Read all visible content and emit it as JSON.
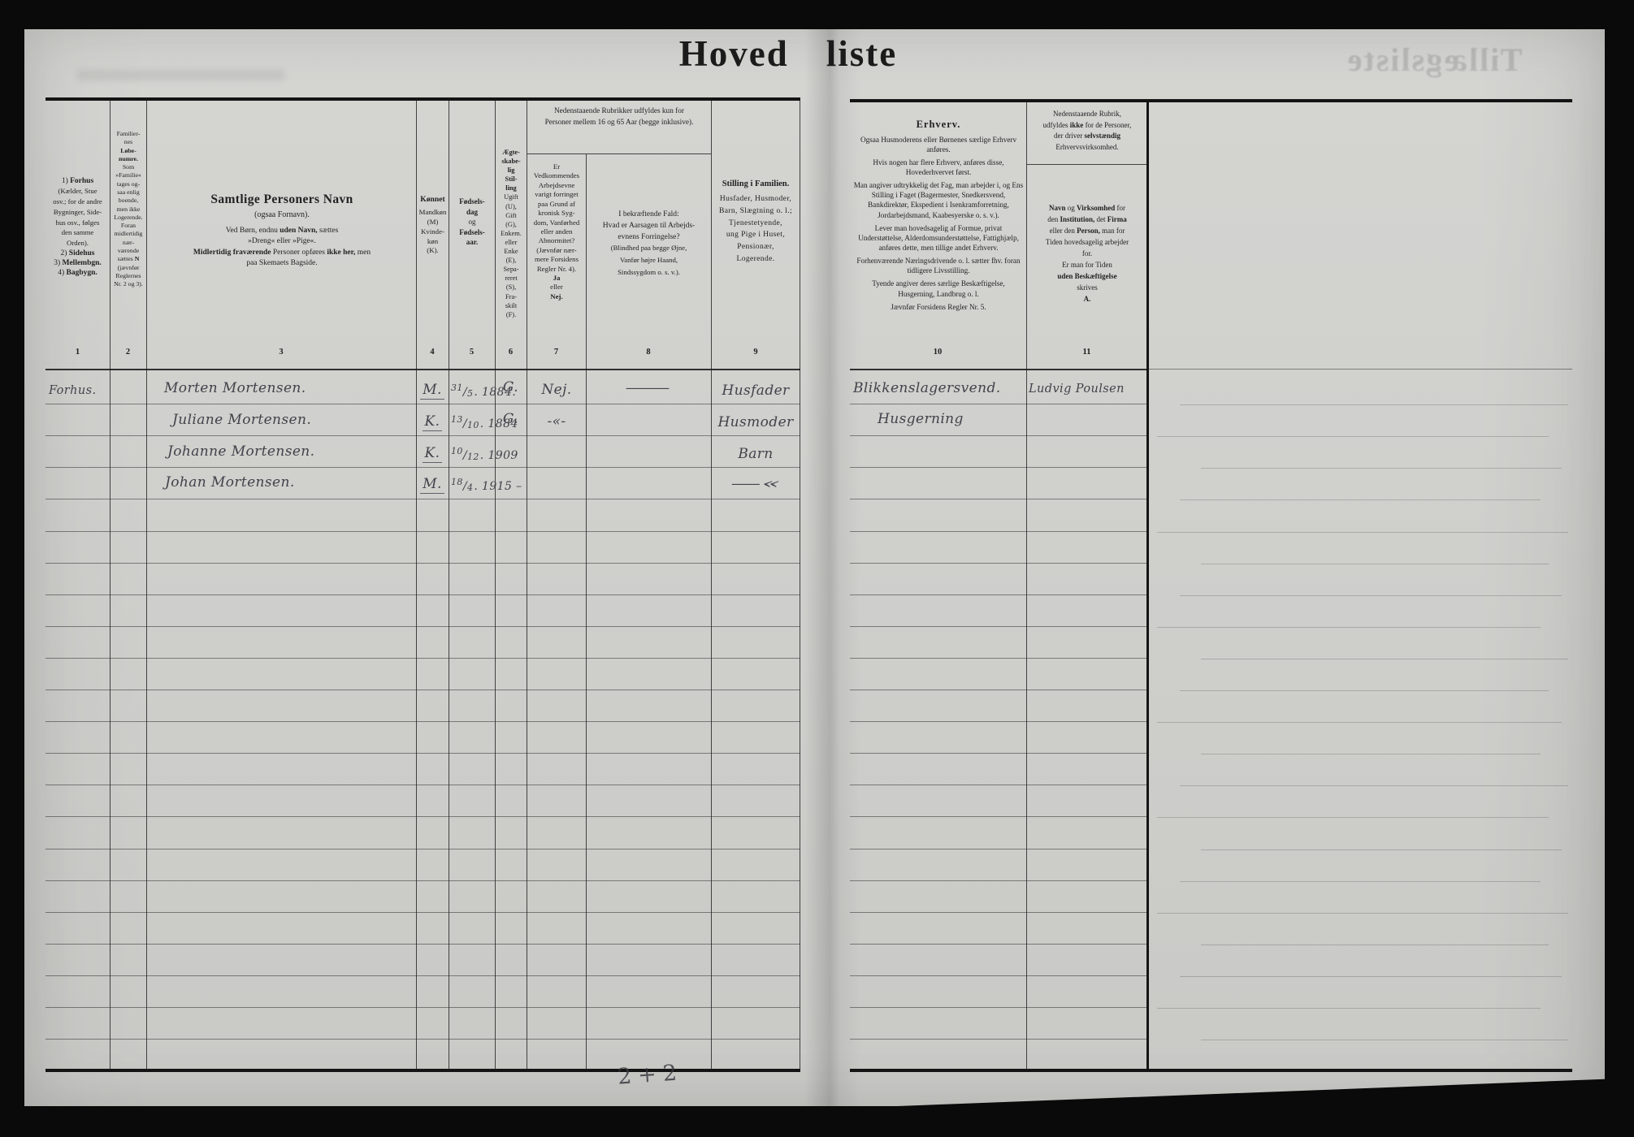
{
  "page": {
    "title_word1": "Hoved",
    "title_word2": "liste",
    "ghost_back_title": "Tillægsliste",
    "bottom_annotation": "2+2"
  },
  "marks": {
    "fraction_separator": "/"
  },
  "header": {
    "col_numbers": [
      "1",
      "2",
      "3",
      "4",
      "5",
      "6",
      "7",
      "8",
      "9",
      "10",
      "11"
    ],
    "col1": [
      {
        "t": "1) "
      },
      {
        "t": "Forhus",
        "b": 1,
        "br": 1
      },
      {
        "t": "(Kælder, Stue",
        "sm": 1,
        "br": 1
      },
      {
        "t": "osv.; for de andre",
        "sm": 1,
        "br": 1
      },
      {
        "t": "Bygninger, Side-",
        "sm": 1,
        "br": 1
      },
      {
        "t": "hus osv., følges",
        "sm": 1,
        "br": 1
      },
      {
        "t": "den samme",
        "sm": 1,
        "br": 1
      },
      {
        "t": "Orden).",
        "sm": 1,
        "br": 1
      },
      {
        "t": "2) "
      },
      {
        "t": "Sidehus",
        "b": 1,
        "br": 1
      },
      {
        "t": "3) "
      },
      {
        "t": "Mellembgn.",
        "b": 1,
        "br": 1
      },
      {
        "t": "4) "
      },
      {
        "t": "Bagbygn.",
        "b": 1
      }
    ],
    "col2": [
      {
        "t": "Familier-",
        "br": 1
      },
      {
        "t": "nes",
        "br": 1
      },
      {
        "t": "Løbe-",
        "b": 1,
        "br": 1
      },
      {
        "t": "numre.",
        "b": 1,
        "br": 1
      },
      {
        "t": "Som",
        "br": 1
      },
      {
        "t": "»Familie«",
        "br": 1
      },
      {
        "t": "tages og-",
        "br": 1
      },
      {
        "t": "saa enlig",
        "br": 1
      },
      {
        "t": "boende,",
        "br": 1
      },
      {
        "t": "men ikke",
        "br": 1
      },
      {
        "t": "Logerende.",
        "br": 1
      },
      {
        "t": "Foran",
        "br": 1
      },
      {
        "t": "midlertidig",
        "br": 1
      },
      {
        "t": "nær-",
        "br": 1
      },
      {
        "t": "værende",
        "br": 1
      },
      {
        "t": "sættes "
      },
      {
        "t": "N",
        "b": 1,
        "br": 1
      },
      {
        "t": "(jævnfør",
        "br": 1
      },
      {
        "t": "Reglernes",
        "br": 1
      },
      {
        "t": "Nr. 2 og 3)."
      }
    ],
    "col3_title": "Samtlige Personers Navn",
    "col3_sub": "(ogsaa Fornavn).",
    "col3_note": [
      {
        "t": "Ved Børn, endnu "
      },
      {
        "t": "uden Navn,",
        "b": 1
      },
      {
        "t": " sættes",
        "br": 1
      },
      {
        "t": "»Dreng« eller »Pige«.",
        "br": 1
      },
      {
        "t": "Midlertidig fraværende",
        "b": 1
      },
      {
        "t": " Personer opføres "
      },
      {
        "t": "ikke her,",
        "b": 1
      },
      {
        "t": " men",
        "br": 1
      },
      {
        "t": "paa Skemaets Bagside."
      }
    ],
    "col4_title": "Kønnet",
    "col4_body": [
      {
        "t": "Mandkøn",
        "br": 1
      },
      {
        "t": "(M)",
        "br": 1
      },
      {
        "t": "Kvinde-",
        "br": 1
      },
      {
        "t": "køn",
        "br": 1
      },
      {
        "t": "(K)."
      }
    ],
    "col5": [
      {
        "t": "Fødsels-",
        "b": 1,
        "br": 1
      },
      {
        "t": "dag",
        "b": 1,
        "br": 1
      },
      {
        "t": "og",
        "br": 1
      },
      {
        "t": "Fødsels-",
        "b": 1,
        "br": 1
      },
      {
        "t": "aar.",
        "b": 1
      }
    ],
    "col6": [
      {
        "t": "Ægte-",
        "b": 1,
        "br": 1
      },
      {
        "t": "skabe-",
        "b": 1,
        "br": 1
      },
      {
        "t": "lig",
        "b": 1,
        "br": 1
      },
      {
        "t": "Stil-",
        "b": 1,
        "br": 1
      },
      {
        "t": "ling",
        "b": 1,
        "br": 1
      },
      {
        "t": "Ugift",
        "br": 1
      },
      {
        "t": "(U),",
        "br": 1
      },
      {
        "t": "Gift",
        "br": 1
      },
      {
        "t": "(G),",
        "br": 1
      },
      {
        "t": "Enkem.",
        "br": 1
      },
      {
        "t": "eller",
        "br": 1
      },
      {
        "t": "Enke",
        "br": 1
      },
      {
        "t": "(E),",
        "br": 1
      },
      {
        "t": "Sepa-",
        "br": 1
      },
      {
        "t": "reret",
        "br": 1
      },
      {
        "t": "(S),",
        "br": 1
      },
      {
        "t": "Fra-",
        "br": 1
      },
      {
        "t": "skilt",
        "br": 1
      },
      {
        "t": "(F)."
      }
    ],
    "col78_note": [
      {
        "t": "Nedenstaaende Rubrikker udfyldes kun for",
        "br": 1
      },
      {
        "t": "Personer mellem 16 og 65 Aar (begge inklusive)."
      }
    ],
    "col7": [
      {
        "t": "Er",
        "br": 1
      },
      {
        "t": "Vedkommendes",
        "br": 1
      },
      {
        "t": "Arbejdsevne",
        "br": 1
      },
      {
        "t": "varigt forringet",
        "br": 1
      },
      {
        "t": "paa Grund af",
        "br": 1
      },
      {
        "t": "kronisk Syg-",
        "br": 1
      },
      {
        "t": "dom, Vanførhed",
        "br": 1
      },
      {
        "t": "eller anden",
        "br": 1
      },
      {
        "t": "Abnormitet?",
        "br": 1
      },
      {
        "t": "(Jævnfør nær-",
        "br": 1
      },
      {
        "t": "mere Forsidens",
        "br": 1
      },
      {
        "t": "Regler Nr. 4).",
        "br": 1
      },
      {
        "t": "Ja",
        "b": 1,
        "br": 1
      },
      {
        "t": "eller",
        "br": 1
      },
      {
        "t": "Nej.",
        "b": 1
      }
    ],
    "col8": [
      {
        "t": "I bekræftende Fald:",
        "br": 1
      },
      {
        "t": "Hvad er Aarsagen til Arbejds-",
        "br": 1
      },
      {
        "t": "evnens Forringelse?",
        "br": 1
      },
      {
        "t": "(Blindhed paa begge Øjne,",
        "sm": 1,
        "br": 1
      },
      {
        "t": "Vanfør højre Haand,",
        "sm": 1,
        "br": 1
      },
      {
        "t": "Sindssygdom o. s. v.).",
        "sm": 1
      }
    ],
    "col9_title": "Stilling i Familien.",
    "col9_body": [
      {
        "t": "Husfader, Husmoder,",
        "br": 1
      },
      {
        "t": "Barn, Slægtning o. l.;",
        "br": 1
      },
      {
        "t": "Tjenestetyende,",
        "br": 1
      },
      {
        "t": "ung Pige i Huset,",
        "br": 1
      },
      {
        "t": "Pensionær,",
        "br": 1
      },
      {
        "t": "Logerende."
      }
    ],
    "col10_title": "Erhverv.",
    "col10_paragraphs": [
      "Ogsaa Husmoderens eller Børnenes særlige Erhverv anføres.",
      "Hvis nogen har flere Erhverv, anføres disse, Hovederhvervet først.",
      "Man angiver udtrykkelig det Fag, man arbejder i, og Ens Stilling i Faget (Bagermester, Snedkersvend, Bankdirektør, Ekspedient i Isenkramforretning, Jordarbejdsmand, Kaabesyerske o. s. v.).",
      "Lever man hovedsagelig af Formue, privat Understøttelse, Alderdomsunderstøttelse, Fattighjælp, anføres dette, men tillige andet Erhverv.",
      "Forhenværende Næringsdrivende o. l. sætter fhv. foran tidligere Livsstilling.",
      "Tyende angiver deres særlige Beskæftigelse, Husgerning, Landbrug o. l.",
      "Jævnfør Forsidens Regler Nr. 5."
    ],
    "col11_note": [
      {
        "t": "Nedenstaaende Rubrik,",
        "br": 1
      },
      {
        "t": "udfyldes "
      },
      {
        "t": "ikke",
        "b": 1
      },
      {
        "t": " for de Personer,",
        "br": 1
      },
      {
        "t": "der driver "
      },
      {
        "t": "selvstændig",
        "b": 1,
        "br": 1
      },
      {
        "t": "Erhvervsvirksomhed."
      }
    ],
    "col11_main": [
      {
        "t": "Navn",
        "b": 1
      },
      {
        "t": " og "
      },
      {
        "t": "Virksomhed",
        "b": 1
      },
      {
        "t": " for",
        "br": 1
      },
      {
        "t": "den "
      },
      {
        "t": "Institution,",
        "b": 1
      },
      {
        "t": " det "
      },
      {
        "t": "Firma",
        "b": 1,
        "br": 1
      },
      {
        "t": "eller den "
      },
      {
        "t": "Person,",
        "b": 1
      },
      {
        "t": " man for",
        "br": 1
      },
      {
        "t": "Tiden hovedsagelig arbejder",
        "br": 1
      },
      {
        "t": "for.",
        "br": 1
      },
      {
        "t": "Er man for Tiden",
        "br": 1
      },
      {
        "t": "uden Beskæftigelse",
        "b": 1,
        "br": 1
      },
      {
        "t": "skrives",
        "br": 1
      },
      {
        "t": "A.",
        "b": 1
      }
    ]
  },
  "rows": [
    {
      "building": "Forhus.",
      "name": "Morten Mortensen.",
      "sex": "M.",
      "birth_day": "31",
      "birth_month": "5",
      "birth_rest": ". 1884.",
      "marital": "G.",
      "impaired": "Nej.",
      "cause": "—",
      "family": "Husfader",
      "occupation": "Blikkenslagersvend.",
      "employer": "Ludvig Poulsen"
    },
    {
      "name": "Juliane Mortensen.",
      "sex": "K.",
      "birth_day": "13",
      "birth_month": "10",
      "birth_rest": ". 1884",
      "marital": "G.",
      "impaired": "-«-",
      "family": "Husmoder",
      "occupation": "Husgerning"
    },
    {
      "name": "Johanne Mortensen.",
      "sex": "K.",
      "birth_day": "10",
      "birth_month": "12",
      "birth_rest": ". 1909",
      "family": "Barn"
    },
    {
      "name": "Johan Mortensen.",
      "sex": "M.",
      "birth_day": "18",
      "birth_month": "4",
      "birth_rest": ". 1915 –",
      "family": "—«"
    }
  ]
}
